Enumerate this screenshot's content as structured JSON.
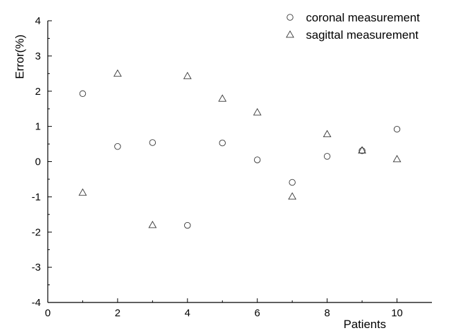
{
  "chart_data": {
    "type": "scatter",
    "xlabel": "Patients",
    "ylabel": "Error(%)",
    "xlim": [
      0,
      11
    ],
    "ylim": [
      -4,
      4
    ],
    "x_ticks": [
      0,
      2,
      4,
      6,
      8,
      10
    ],
    "y_ticks": [
      -4,
      -3,
      -2,
      -1,
      0,
      1,
      2,
      3,
      4
    ],
    "legend_position": "top-right",
    "series": [
      {
        "name": "coronal measurement",
        "marker": "circle",
        "x": [
          1,
          2,
          3,
          4,
          5,
          6,
          7,
          8,
          9,
          10
        ],
        "y": [
          1.93,
          0.43,
          0.54,
          -1.81,
          0.53,
          0.05,
          -0.59,
          0.15,
          0.31,
          0.92
        ]
      },
      {
        "name": "sagittal measurement",
        "marker": "triangle",
        "x": [
          1,
          2,
          3,
          4,
          5,
          6,
          7,
          8,
          9,
          10
        ],
        "y": [
          -0.88,
          2.5,
          -1.8,
          2.43,
          1.79,
          1.4,
          -0.99,
          0.78,
          0.32,
          0.07
        ]
      }
    ]
  }
}
